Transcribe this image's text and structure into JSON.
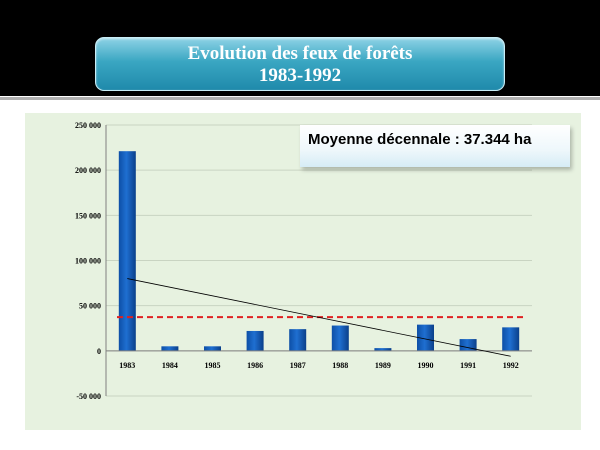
{
  "slide": {
    "title_line1": "Evolution des feux de forêts",
    "title_line2": "1983-1992"
  },
  "annotation": "Moyenne décennale  : 37.344 ha",
  "colors": {
    "bar": "#1f6fd1",
    "average_line": "#e02020",
    "trend_line": "#000000",
    "panel": "#e7f2e0"
  },
  "chart_data": {
    "type": "bar",
    "title": "",
    "xlabel": "",
    "ylabel": "",
    "categories": [
      "1983",
      "1984",
      "1985",
      "1986",
      "1987",
      "1988",
      "1989",
      "1990",
      "1991",
      "1992"
    ],
    "values": [
      221000,
      5000,
      5000,
      22000,
      24000,
      28000,
      3000,
      29000,
      13000,
      26000
    ],
    "ylim": [
      -50000,
      250000
    ],
    "yticks": [
      -50000,
      0,
      50000,
      100000,
      150000,
      200000,
      250000
    ],
    "ytick_labels": [
      "-50 000",
      "0",
      "50 000",
      "100 000",
      "150 000",
      "200 000",
      "250 000"
    ],
    "reference_line": {
      "value": 37344,
      "style": "dashed"
    },
    "trendline": {
      "start": 80000,
      "end": -6000
    },
    "grid": true,
    "legend": "none"
  }
}
